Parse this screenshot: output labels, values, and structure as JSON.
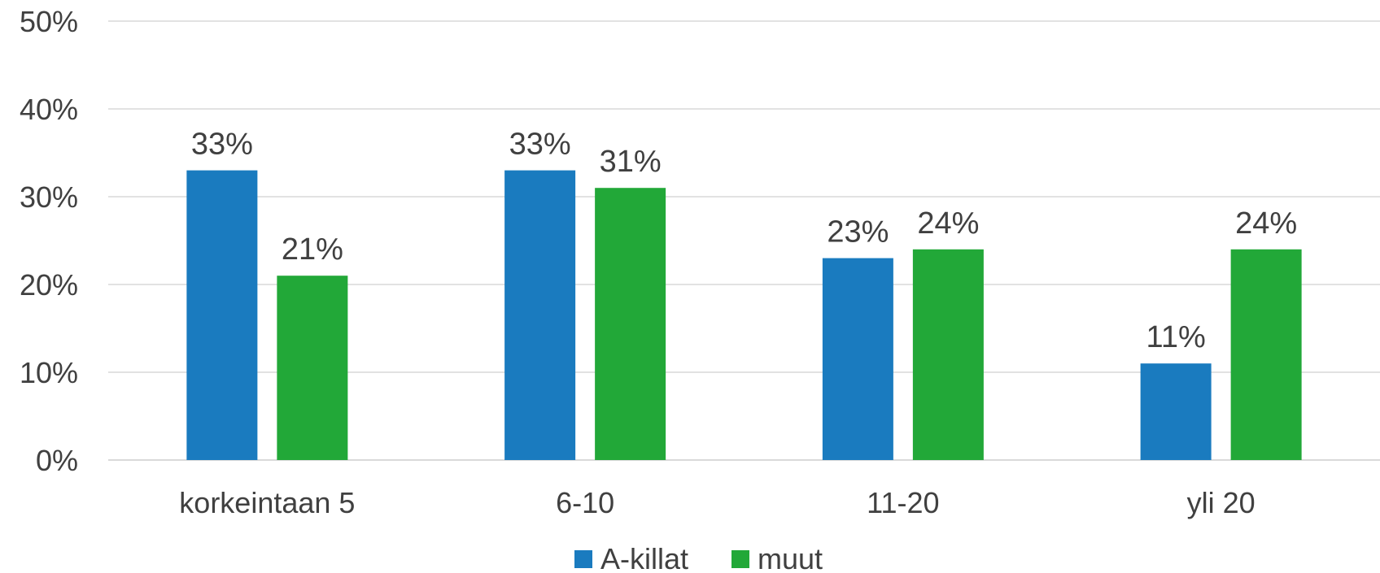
{
  "chart_data": {
    "type": "bar",
    "categories": [
      "korkeintaan 5",
      "6-10",
      "11-20",
      "yli 20"
    ],
    "series": [
      {
        "name": "A-killat",
        "values": [
          33,
          33,
          23,
          11
        ],
        "color": "#1a7bbf"
      },
      {
        "name": "muut",
        "values": [
          21,
          31,
          24,
          24
        ],
        "color": "#22a838"
      }
    ],
    "data_labels": [
      [
        "33%",
        "33%",
        "23%",
        "11%"
      ],
      [
        "21%",
        "31%",
        "24%",
        "24%"
      ]
    ],
    "ylim": [
      0,
      50
    ],
    "yticks": [
      0,
      10,
      20,
      30,
      40,
      50
    ],
    "ytick_labels": [
      "0%",
      "10%",
      "20%",
      "30%",
      "40%",
      "50%"
    ],
    "grid": true,
    "legend": "bottom-center",
    "title": "",
    "xlabel": "",
    "ylabel": ""
  }
}
